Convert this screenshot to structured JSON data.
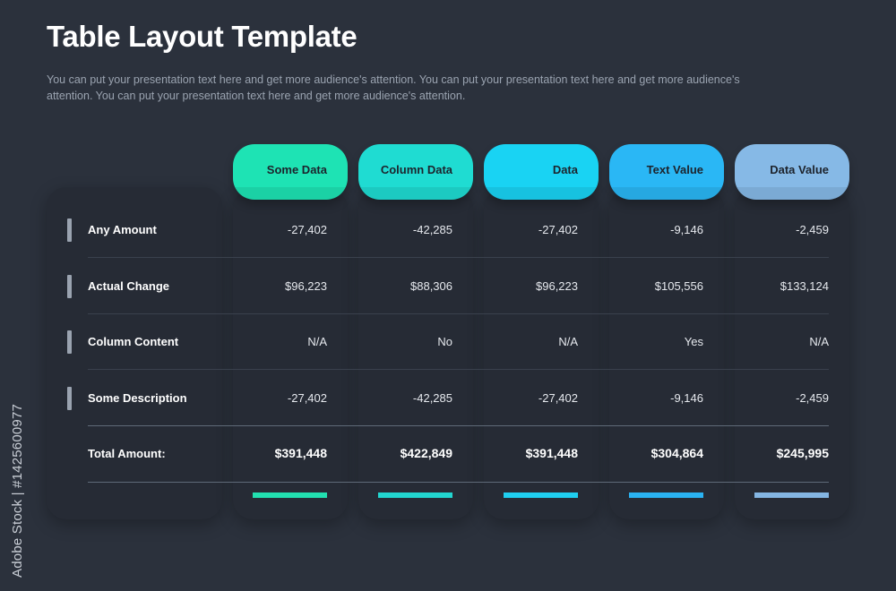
{
  "title": "Table Layout Template",
  "subtitle": "You can put your presentation text here and get more audience's attention. You can put your presentation text here and get more audience's attention. You can put your presentation text here and get more audience's attention.",
  "columns": [
    {
      "label": "Some Data",
      "color": "#1ee3b4",
      "accent": "#22e0b0"
    },
    {
      "label": "Column Data",
      "color": "#1fdcd2",
      "accent": "#22d6d0"
    },
    {
      "label": "Data",
      "color": "#19d3f3",
      "accent": "#1fcff0"
    },
    {
      "label": "Text Value",
      "color": "#2ab7f5",
      "accent": "#2ab3f2"
    },
    {
      "label": "Data Value",
      "color": "#86b9e6",
      "accent": "#84b6e3"
    }
  ],
  "rows": [
    {
      "label": "Any Amount",
      "values": [
        "-27,402",
        "-42,285",
        "-27,402",
        "-9,146",
        "-2,459"
      ]
    },
    {
      "label": "Actual Change",
      "values": [
        "$96,223",
        "$88,306",
        "$96,223",
        "$105,556",
        "$133,124"
      ]
    },
    {
      "label": "Column Content",
      "values": [
        "N/A",
        "No",
        "N/A",
        "Yes",
        "N/A"
      ]
    },
    {
      "label": "Some Description",
      "values": [
        "-27,402",
        "-42,285",
        "-27,402",
        "-9,146",
        "-2,459"
      ]
    }
  ],
  "total": {
    "label": "Total Amount:",
    "values": [
      "$391,448",
      "$422,849",
      "$391,448",
      "$304,864",
      "$245,995"
    ]
  },
  "watermark": "Adobe Stock | #1425600977"
}
